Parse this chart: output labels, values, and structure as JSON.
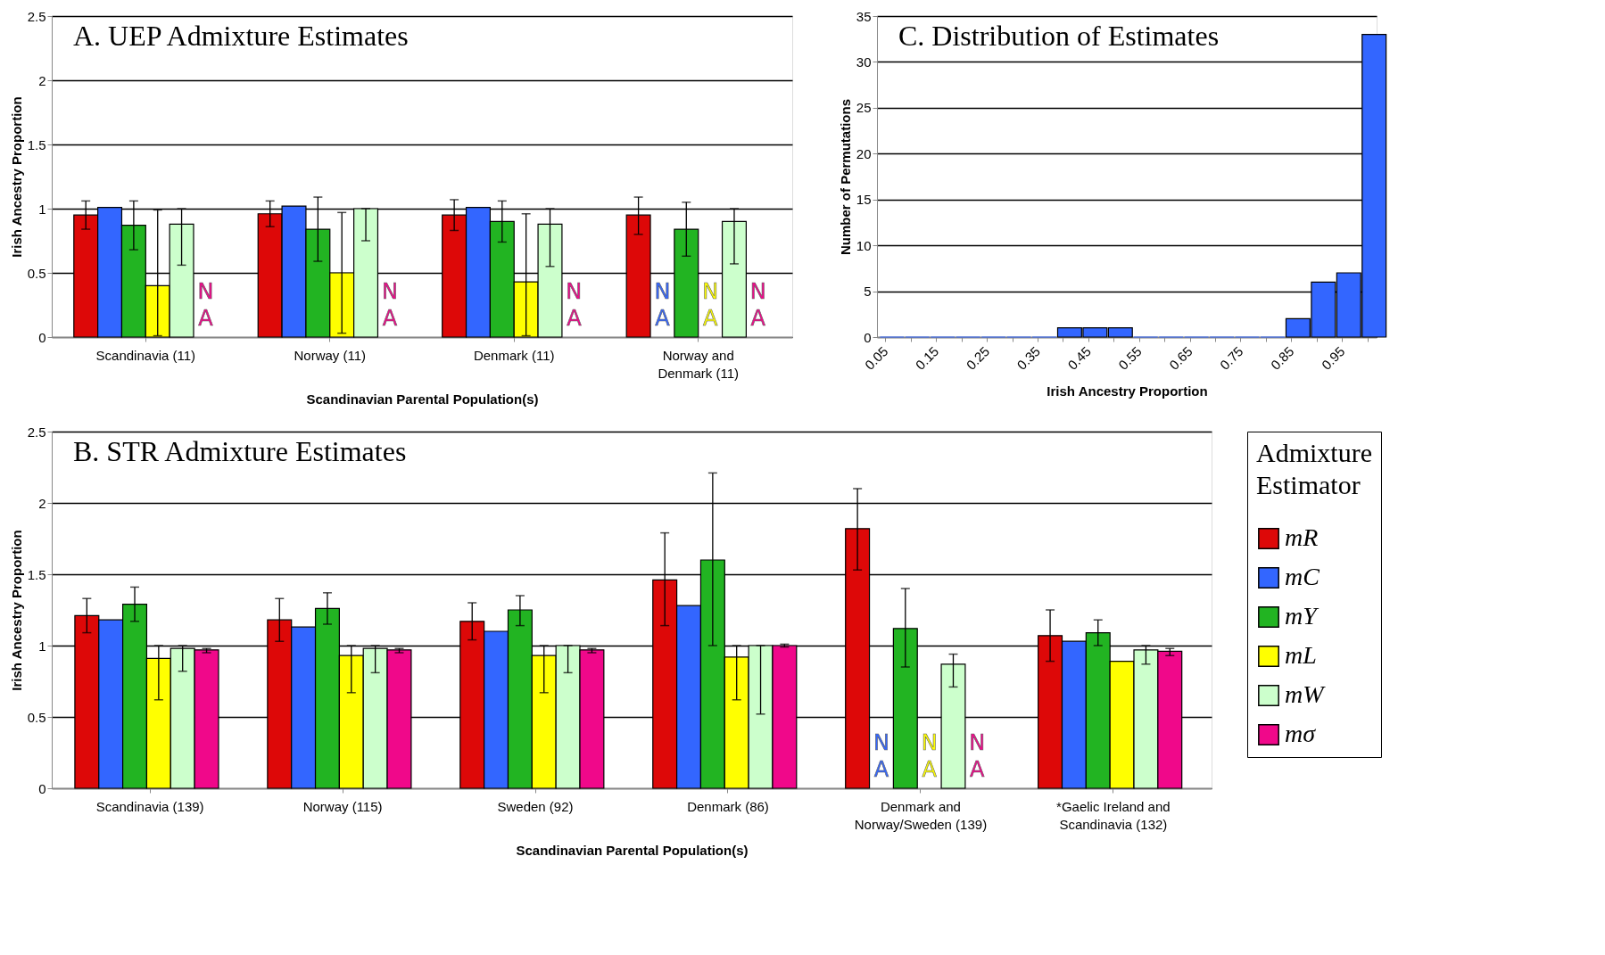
{
  "chart_data": [
    {
      "type": "bar",
      "title": "A. UEP Admixture Estimates",
      "xlabel": "Scandinavian Parental Population(s)",
      "ylabel": "Irish Ancestry Proportion",
      "categories": [
        "Scandinavia (11)",
        "Norway (11)",
        "Denmark (11)",
        "Norway and Denmark (11)"
      ],
      "ylim": [
        0,
        2.5
      ],
      "yticks": [
        0,
        0.5,
        1,
        1.5,
        2,
        2.5
      ],
      "grid": "y",
      "series": [
        {
          "color": "#dd0808",
          "values": [
            0.95,
            0.96,
            0.95,
            0.95
          ],
          "errors": [
            [
              0.84,
              1.06
            ],
            [
              0.86,
              1.06
            ],
            [
              0.83,
              1.07
            ],
            [
              0.8,
              1.09
            ]
          ]
        },
        {
          "color": "#3366ff",
          "values": [
            1.01,
            1.02,
            1.01,
            null
          ],
          "value_labels": [
            null,
            null,
            null,
            "NA"
          ]
        },
        {
          "color": "#22b422",
          "values": [
            0.87,
            0.84,
            0.9,
            0.84
          ],
          "errors": [
            [
              0.68,
              1.06
            ],
            [
              0.59,
              1.09
            ],
            [
              0.74,
              1.06
            ],
            [
              0.63,
              1.05
            ]
          ]
        },
        {
          "color": "#ffff00",
          "values": [
            0.4,
            0.5,
            0.43,
            null
          ],
          "errors": [
            [
              0.01,
              0.99
            ],
            [
              0.03,
              0.97
            ],
            [
              0.01,
              0.96
            ],
            null
          ],
          "value_labels": [
            null,
            null,
            null,
            "NA"
          ]
        },
        {
          "color": "#ccffcc",
          "values": [
            0.88,
            1.0,
            0.88,
            0.9
          ],
          "errors": [
            [
              0.56,
              1.0
            ],
            [
              0.75,
              1.0
            ],
            [
              0.55,
              1.0
            ],
            [
              0.57,
              1.0
            ]
          ]
        },
        {
          "color": "#f0088a",
          "values": [
            null,
            null,
            null,
            null
          ],
          "value_labels": [
            "NA",
            "NA",
            "NA",
            "NA"
          ]
        }
      ]
    },
    {
      "type": "bar",
      "title": "C. Distribution of Estimates",
      "xlabel": "Irish Ancestry Proportion",
      "ylabel": "Number of Permutations",
      "categories": [
        "0.05",
        null,
        "0.15",
        null,
        "0.25",
        null,
        "0.35",
        null,
        "0.45",
        null,
        "0.55",
        null,
        "0.65",
        null,
        "0.75",
        null,
        "0.85",
        null,
        "0.95",
        null
      ],
      "values": [
        0,
        0,
        0,
        0,
        0,
        0,
        0,
        1,
        1,
        1,
        0,
        0,
        0,
        0,
        0,
        0,
        2,
        6,
        7,
        33
      ],
      "color": "#3366ff",
      "ylim": [
        0,
        35
      ],
      "yticks": [
        0,
        5,
        10,
        15,
        20,
        25,
        30,
        35
      ],
      "grid": "y"
    },
    {
      "type": "bar",
      "title": "B. STR Admixture Estimates",
      "xlabel": "Scandinavian Parental Population(s)",
      "ylabel": "Irish Ancestry Proportion",
      "legend_title": "Admixture Estimator",
      "legend": "right",
      "categories": [
        "Scandinavia (139)",
        "Norway (115)",
        "Sweden (92)",
        "Denmark (86)",
        "Denmark and Norway/Sweden (139)",
        "*Gaelic Ireland and Scandinavia (132)"
      ],
      "ylim": [
        0,
        2.5
      ],
      "yticks": [
        0,
        0.5,
        1,
        1.5,
        2,
        2.5
      ],
      "grid": "y",
      "series": [
        {
          "name": "mR",
          "color": "#dd0808",
          "values": [
            1.21,
            1.18,
            1.17,
            1.46,
            1.82,
            1.07
          ],
          "errors": [
            [
              1.09,
              1.33
            ],
            [
              1.03,
              1.33
            ],
            [
              1.04,
              1.3
            ],
            [
              1.14,
              1.79
            ],
            [
              1.53,
              2.1
            ],
            [
              0.89,
              1.25
            ]
          ]
        },
        {
          "name": "mC",
          "color": "#3366ff",
          "values": [
            1.18,
            1.13,
            1.1,
            1.28,
            null,
            1.03
          ],
          "value_labels": [
            null,
            null,
            null,
            null,
            "NA",
            null
          ]
        },
        {
          "name": "mY",
          "color": "#22b422",
          "values": [
            1.29,
            1.26,
            1.25,
            1.6,
            1.12,
            1.09
          ],
          "errors": [
            [
              1.17,
              1.41
            ],
            [
              1.15,
              1.37
            ],
            [
              1.14,
              1.35
            ],
            [
              1.0,
              2.21
            ],
            [
              0.85,
              1.4
            ],
            [
              1.0,
              1.18
            ]
          ]
        },
        {
          "name": "mL",
          "color": "#ffff00",
          "values": [
            0.91,
            0.93,
            0.93,
            0.92,
            null,
            0.89
          ],
          "errors": [
            [
              0.62,
              1.0
            ],
            [
              0.67,
              1.0
            ],
            [
              0.67,
              1.0
            ],
            [
              0.62,
              1.0
            ],
            null,
            null
          ],
          "value_labels": [
            null,
            null,
            null,
            null,
            "NA",
            null
          ]
        },
        {
          "name": "mW",
          "color": "#ccffcc",
          "values": [
            0.98,
            0.98,
            1.0,
            1.0,
            0.87,
            0.97
          ],
          "errors": [
            [
              0.82,
              1.0
            ],
            [
              0.81,
              1.0
            ],
            [
              0.81,
              1.0
            ],
            [
              0.52,
              1.0
            ],
            [
              0.71,
              0.94
            ],
            [
              0.87,
              1.0
            ]
          ]
        },
        {
          "name": "mσ",
          "color": "#f0088a",
          "values": [
            0.97,
            0.97,
            0.97,
            1.0,
            null,
            0.96
          ],
          "errors": [
            [
              0.95,
              0.98
            ],
            [
              0.95,
              0.98
            ],
            [
              0.95,
              0.98
            ],
            [
              0.99,
              1.01
            ],
            null,
            [
              0.93,
              0.98
            ]
          ],
          "value_labels": [
            null,
            null,
            null,
            null,
            "NA",
            null
          ]
        }
      ]
    }
  ]
}
